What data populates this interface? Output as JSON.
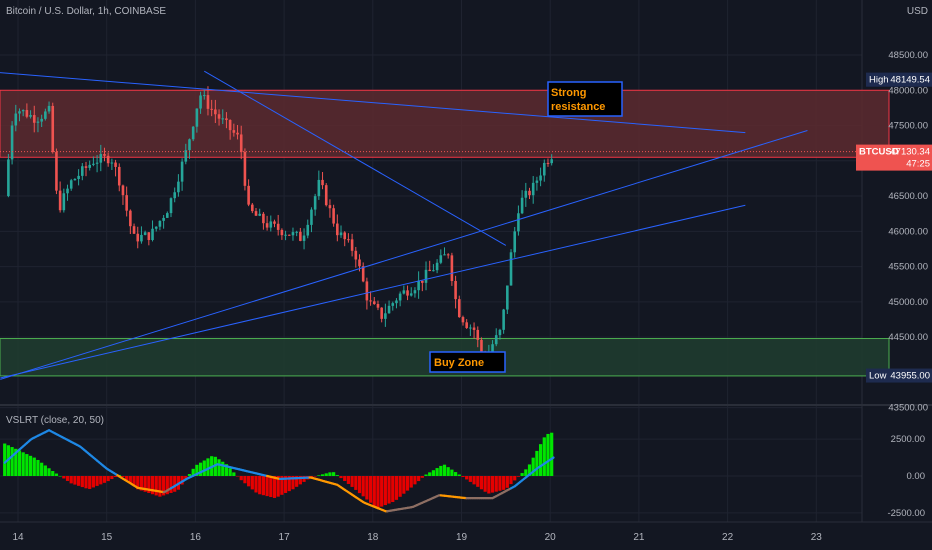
{
  "header": {
    "symbol_title": "Bitcoin / U.S. Dollar, 1h, COINBASE",
    "currency": "USD"
  },
  "indicator": {
    "title": "VSLRT (close, 20, 50)"
  },
  "price_tag": {
    "symbol": "BTCUSD",
    "price": "47130.34",
    "countdown": "47:25"
  },
  "high_tag": {
    "label": "High",
    "value": "48149.54"
  },
  "low_tag": {
    "label": "Low",
    "value": "43955.00"
  },
  "annotations": {
    "resistance": [
      "Strong",
      "resistance"
    ],
    "buy_zone": "Buy Zone"
  },
  "colors": {
    "background": "#131722",
    "grid": "#1f2330",
    "up": "#26a69a",
    "down": "#ef5350",
    "trendline": "#2962ff",
    "resistance_zone": "#5d2a2f",
    "buy_zone": "#1f3b2f",
    "text": "#b2b5be",
    "annotation_text": "#ff9800"
  },
  "chart_data": [
    {
      "type": "candlestick",
      "title": "Bitcoin / U.S. Dollar, 1h, COINBASE",
      "x_tick_labels": [
        "14",
        "15",
        "16",
        "17",
        "18",
        "19",
        "20",
        "21",
        "22",
        "23"
      ],
      "y_tick_labels": [
        "48500.00",
        "48000.00",
        "47500.00",
        "47000.00",
        "46500.00",
        "46000.00",
        "45500.00",
        "45000.00",
        "44500.00",
        "44000.00",
        "43500.00"
      ],
      "ylim": [
        43500,
        49000
      ],
      "grid": true,
      "current_price": 47130.34,
      "high": 48149.54,
      "low": 43955.0,
      "zones": [
        {
          "name": "Strong resistance",
          "from": 47050,
          "to": 48000
        },
        {
          "name": "Buy Zone",
          "from": 43950,
          "to": 44480
        }
      ],
      "trendlines": [
        {
          "x": [
            13.3,
            22.2
          ],
          "y": [
            48300,
            47400
          ]
        },
        {
          "x": [
            16.1,
            19.5
          ],
          "y": [
            48270,
            45800
          ]
        },
        {
          "x": [
            13.8,
            22.9
          ],
          "y": [
            43900,
            47430
          ]
        },
        {
          "x": [
            13.8,
            22.2
          ],
          "y": [
            43920,
            46370
          ]
        }
      ],
      "path_points": [
        [
          13.85,
          46500
        ],
        [
          13.95,
          47750
        ],
        [
          14.05,
          47700
        ],
        [
          14.2,
          47600
        ],
        [
          14.35,
          47700
        ],
        [
          14.45,
          46300
        ],
        [
          14.6,
          46700
        ],
        [
          14.85,
          47000
        ],
        [
          15.05,
          47050
        ],
        [
          15.15,
          46700
        ],
        [
          15.3,
          45900
        ],
        [
          15.5,
          45950
        ],
        [
          15.7,
          46350
        ],
        [
          15.9,
          47150
        ],
        [
          16.05,
          47950
        ],
        [
          16.2,
          47700
        ],
        [
          16.35,
          47500
        ],
        [
          16.5,
          47300
        ],
        [
          16.6,
          46300
        ],
        [
          16.8,
          46100
        ],
        [
          17.0,
          46000
        ],
        [
          17.2,
          45900
        ],
        [
          17.4,
          46700
        ],
        [
          17.6,
          46000
        ],
        [
          17.8,
          45700
        ],
        [
          17.95,
          45000
        ],
        [
          18.1,
          44800
        ],
        [
          18.3,
          45100
        ],
        [
          18.5,
          45250
        ],
        [
          18.7,
          45500
        ],
        [
          18.85,
          45700
        ],
        [
          18.95,
          44900
        ],
        [
          19.05,
          44700
        ],
        [
          19.15,
          44600
        ],
        [
          19.25,
          44100
        ],
        [
          19.35,
          44400
        ],
        [
          19.45,
          44600
        ],
        [
          19.55,
          45600
        ],
        [
          19.65,
          46400
        ],
        [
          19.8,
          46600
        ],
        [
          19.95,
          47000
        ],
        [
          20.05,
          47130
        ]
      ]
    },
    {
      "type": "bar",
      "title": "VSLRT (close, 20, 50)",
      "y_tick_labels": [
        "2500.00",
        "0.00",
        "-2500.00"
      ],
      "ylim": [
        -3000,
        3600
      ],
      "series": [
        {
          "kind": "histogram",
          "points": [
            [
              13.85,
              2200
            ],
            [
              14.2,
              1200
            ],
            [
              14.4,
              300
            ],
            [
              14.6,
              -500
            ],
            [
              14.8,
              -900
            ],
            [
              15.0,
              -400
            ],
            [
              15.15,
              100
            ],
            [
              15.35,
              -900
            ],
            [
              15.6,
              -1400
            ],
            [
              15.8,
              -1000
            ],
            [
              16.0,
              700
            ],
            [
              16.2,
              1400
            ],
            [
              16.35,
              800
            ],
            [
              16.5,
              -200
            ],
            [
              16.7,
              -1200
            ],
            [
              16.9,
              -1500
            ],
            [
              17.1,
              -900
            ],
            [
              17.3,
              -100
            ],
            [
              17.55,
              300
            ],
            [
              17.8,
              -900
            ],
            [
              18.05,
              -2200
            ],
            [
              18.25,
              -1700
            ],
            [
              18.45,
              -700
            ],
            [
              18.6,
              100
            ],
            [
              18.8,
              800
            ],
            [
              18.95,
              200
            ],
            [
              19.1,
              -400
            ],
            [
              19.3,
              -1200
            ],
            [
              19.5,
              -900
            ],
            [
              19.75,
              600
            ],
            [
              19.95,
              2800
            ],
            [
              20.05,
              3000
            ]
          ]
        },
        {
          "kind": "line",
          "points": [
            [
              13.85,
              900
            ],
            [
              14.15,
              2500
            ],
            [
              14.35,
              3100
            ],
            [
              14.7,
              2000
            ],
            [
              15.0,
              500
            ],
            [
              15.35,
              -800
            ],
            [
              15.65,
              -1100
            ],
            [
              15.9,
              -200
            ],
            [
              16.25,
              800
            ],
            [
              16.6,
              300
            ],
            [
              16.95,
              -200
            ],
            [
              17.3,
              -100
            ],
            [
              17.6,
              -600
            ],
            [
              17.9,
              -1800
            ],
            [
              18.15,
              -2400
            ],
            [
              18.45,
              -2100
            ],
            [
              18.75,
              -1300
            ],
            [
              19.05,
              -1500
            ],
            [
              19.35,
              -1500
            ],
            [
              19.6,
              -700
            ],
            [
              19.85,
              500
            ],
            [
              20.05,
              1300
            ]
          ]
        }
      ]
    }
  ]
}
